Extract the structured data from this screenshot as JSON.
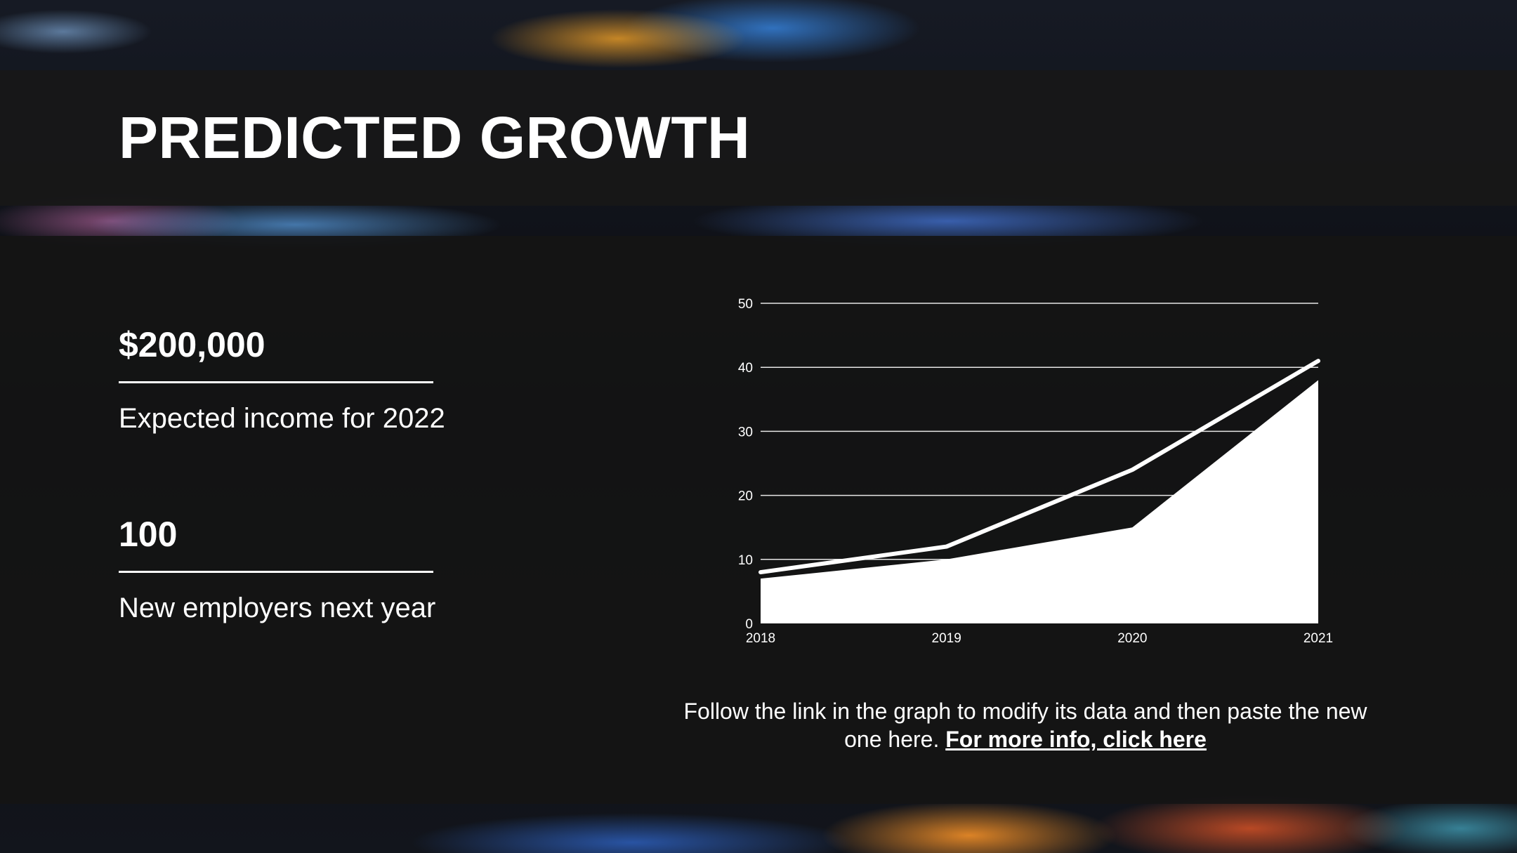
{
  "slide": {
    "title": "PREDICTED GROWTH"
  },
  "stats": [
    {
      "value": "$200,000",
      "label": "Expected income for 2022"
    },
    {
      "value": "100",
      "label": "New employers next year"
    }
  ],
  "caption": {
    "text": "Follow the link in the graph to modify its data and then paste the new one here. ",
    "link_text": "For more info, click here"
  },
  "colors": {
    "background": "#141414",
    "text": "#ffffff",
    "series_fill": "#ffffff",
    "series_line": "#ffffff"
  },
  "chart_data": {
    "type": "area",
    "title": "",
    "xlabel": "",
    "ylabel": "",
    "x": [
      "2018",
      "2019",
      "2020",
      "2021"
    ],
    "ylim": [
      0,
      50
    ],
    "yticks": [
      0,
      10,
      20,
      30,
      40,
      50
    ],
    "grid": true,
    "legend": "none",
    "series": [
      {
        "render": "area",
        "values": [
          7,
          10,
          15,
          38
        ]
      },
      {
        "render": "line",
        "values": [
          8,
          12,
          24,
          41
        ]
      }
    ]
  }
}
